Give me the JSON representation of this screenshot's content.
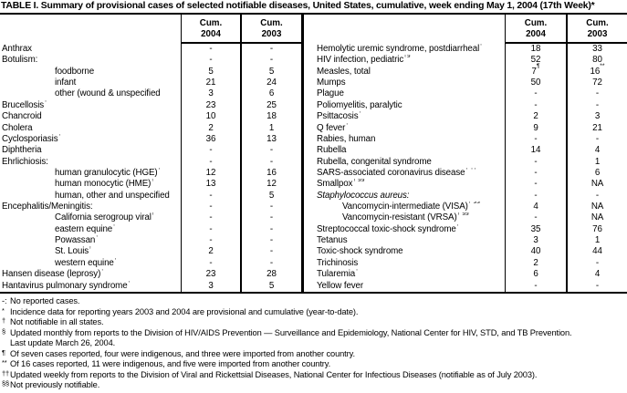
{
  "title": "TABLE I. Summary of provisional cases of selected notifiable diseases, United States, cumulative, week ending May 1, 2004 (17th Week)*",
  "header": {
    "cum": "Cum.",
    "y2004": "2004",
    "y2003": "2003"
  },
  "left_rows": [
    {
      "label": "Anthrax",
      "v04": "-",
      "v03": "-"
    },
    {
      "label": "Botulism:",
      "v04": "-",
      "v03": "-"
    },
    {
      "label": "foodborne",
      "indent": 1,
      "v04": "5",
      "v03": "5"
    },
    {
      "label": "infant",
      "indent": 1,
      "v04": "21",
      "v03": "24"
    },
    {
      "label": "other (wound & unspecified",
      "indent": 1,
      "v04": "3",
      "v03": "6"
    },
    {
      "label": "Brucellosis",
      "sup": "†",
      "v04": "23",
      "v03": "25"
    },
    {
      "label": "Chancroid",
      "v04": "10",
      "v03": "18"
    },
    {
      "label": "Cholera",
      "v04": "2",
      "v03": "1"
    },
    {
      "label": "Cyclosporiasis",
      "sup": "†",
      "v04": "36",
      "v03": "13"
    },
    {
      "label": "Diphtheria",
      "v04": "-",
      "v03": "-"
    },
    {
      "label": "Ehrlichiosis:",
      "v04": "-",
      "v03": "-"
    },
    {
      "label": "human granulocytic (HGE)",
      "sup": "†",
      "indent": 1,
      "v04": "12",
      "v03": "16"
    },
    {
      "label": "human monocytic (HME)",
      "sup": "†",
      "indent": 1,
      "v04": "13",
      "v03": "12"
    },
    {
      "label": "human, other and unspecified",
      "indent": 1,
      "v04": "-",
      "v03": "5"
    },
    {
      "label": "Encephalitis/Meningitis:",
      "v04": "-",
      "v03": "-"
    },
    {
      "label": "California serogroup viral",
      "sup": "†",
      "indent": 1,
      "v04": "-",
      "v03": "-"
    },
    {
      "label": "eastern equine",
      "sup": "†",
      "indent": 1,
      "v04": "-",
      "v03": "-"
    },
    {
      "label": "Powassan",
      "sup": "†",
      "indent": 1,
      "v04": "-",
      "v03": "-"
    },
    {
      "label": "St. Louis",
      "sup": "†",
      "indent": 1,
      "v04": "2",
      "v03": "-"
    },
    {
      "label": "western equine",
      "sup": "†",
      "indent": 1,
      "v04": "-",
      "v03": "-"
    },
    {
      "label": "Hansen disease (leprosy)",
      "sup": "†",
      "v04": "23",
      "v03": "28"
    },
    {
      "label": "Hantavirus pulmonary syndrome",
      "sup": "†",
      "v04": "3",
      "v03": "5"
    }
  ],
  "right_rows": [
    {
      "label": "Hemolytic uremic syndrome, postdiarrheal",
      "sup": "†",
      "v04": "18",
      "v03": "33"
    },
    {
      "label": "HIV infection, pediatric",
      "sup": "†§",
      "v04": "52",
      "v03": "80"
    },
    {
      "label": "Measles, total",
      "v04": "7",
      "v04s": "¶",
      "v03": "16",
      "v03s": "**"
    },
    {
      "label": "Mumps",
      "v04": "50",
      "v03": "72"
    },
    {
      "label": "Plague",
      "v04": "-",
      "v03": "-"
    },
    {
      "label": "Poliomyelitis, paralytic",
      "v04": "-",
      "v03": "-"
    },
    {
      "label": "Psittacosis",
      "sup": "†",
      "v04": "2",
      "v03": "3"
    },
    {
      "label": "Q fever",
      "sup": "†",
      "v04": "9",
      "v03": "21"
    },
    {
      "label": "Rabies, human",
      "v04": "-",
      "v03": "-"
    },
    {
      "label": "Rubella",
      "v04": "14",
      "v03": "4"
    },
    {
      "label": "Rubella, congenital syndrome",
      "v04": "-",
      "v03": "1"
    },
    {
      "label": "SARS-associated coronavirus disease",
      "sup": "† ††",
      "v04": "-",
      "v03": "6"
    },
    {
      "label": "Smallpox",
      "sup": "† §§",
      "v04": "-",
      "v03": "NA"
    },
    {
      "label": "Staphylococcus aureus:",
      "italic": true,
      "v04": "-",
      "v03": "-"
    },
    {
      "label": "Vancomycin-intermediate (VISA)",
      "sup": "† §§",
      "indent": 1,
      "v04": "4",
      "v03": "NA"
    },
    {
      "label": "Vancomycin-resistant (VRSA)",
      "sup": "† §§",
      "indent": 1,
      "v04": "-",
      "v03": "NA"
    },
    {
      "label": "Streptococcal toxic-shock syndrome",
      "sup": "†",
      "v04": "35",
      "v03": "76"
    },
    {
      "label": "Tetanus",
      "v04": "3",
      "v03": "1"
    },
    {
      "label": "Toxic-shock syndrome",
      "v04": "40",
      "v03": "44"
    },
    {
      "label": "Trichinosis",
      "v04": "2",
      "v03": "-"
    },
    {
      "label": "Tularemia",
      "sup": "†",
      "v04": "6",
      "v03": "4"
    },
    {
      "label": "Yellow fever",
      "v04": "-",
      "v03": "-"
    }
  ],
  "footnotes": [
    {
      "marker": "-:",
      "baseline": true,
      "text": "No reported cases."
    },
    {
      "marker": "*",
      "text": "Incidence data for reporting years 2003 and 2004 are provisional and cumulative (year-to-date)."
    },
    {
      "marker": "†",
      "text": "Not notifiable in all states."
    },
    {
      "marker": "§",
      "text": "Updated monthly from reports to the Division of HIV/AIDS Prevention — Surveillance and Epidemiology, National Center for HIV, STD, and TB Prevention.",
      "text2": "Last update March 26, 2004."
    },
    {
      "marker": "¶",
      "text": "Of seven cases reported, four were indigenous, and three were imported from another country."
    },
    {
      "marker": "**",
      "text": "Of 16 cases reported, 11 were indigenous, and five were imported from another country."
    },
    {
      "marker": "††",
      "text": "Updated weekly from reports to the Division of Viral and Rickettsial Diseases, National Center for Infectious Diseases (notifiable as of July 2003)."
    },
    {
      "marker": "§§",
      "text": "Not previously notifiable."
    }
  ]
}
